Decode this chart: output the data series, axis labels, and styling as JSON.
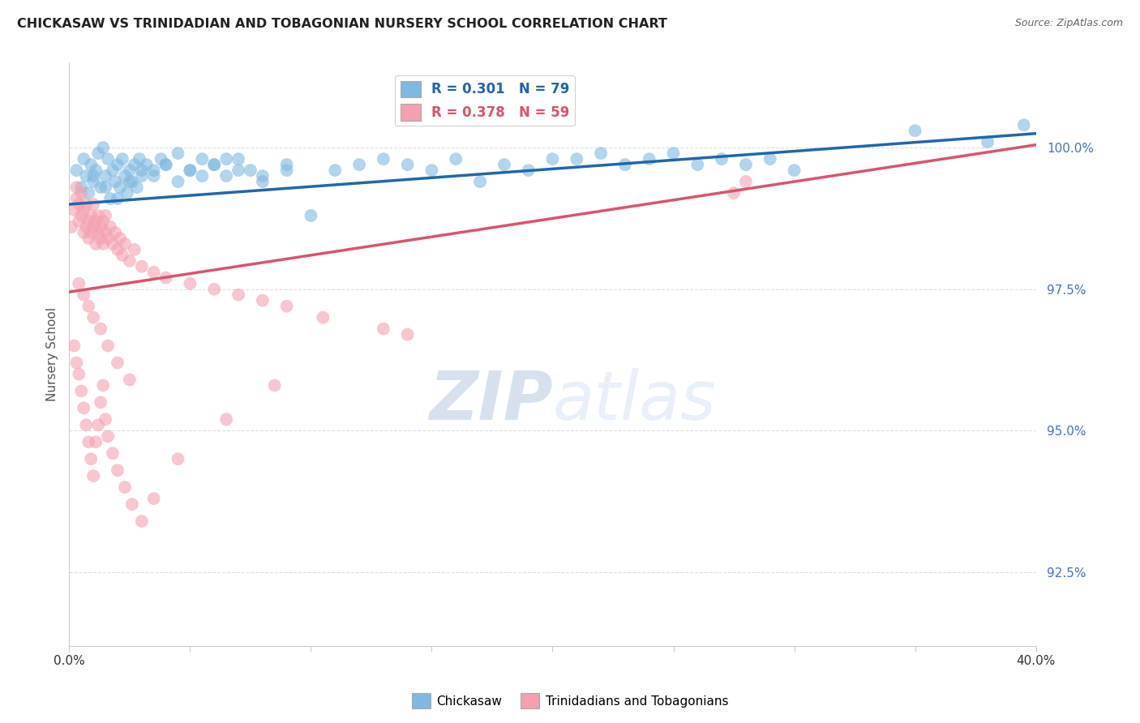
{
  "title": "CHICKASAW VS TRINIDADIAN AND TOBAGONIAN NURSERY SCHOOL CORRELATION CHART",
  "source": "Source: ZipAtlas.com",
  "ylabel": "Nursery School",
  "xlim": [
    0.0,
    40.0
  ],
  "ylim": [
    91.2,
    101.5
  ],
  "yticks": [
    92.5,
    95.0,
    97.5,
    100.0
  ],
  "ytick_labels": [
    "92.5%",
    "95.0%",
    "97.5%",
    "100.0%"
  ],
  "xticks": [
    0.0,
    5.0,
    10.0,
    15.0,
    20.0,
    25.0,
    30.0,
    35.0,
    40.0
  ],
  "blue_R": 0.301,
  "blue_N": 79,
  "pink_R": 0.378,
  "pink_N": 59,
  "blue_color": "#7fb8e0",
  "pink_color": "#f4a0b0",
  "blue_line_color": "#2166ac",
  "pink_line_color": "#d9546e",
  "legend_label_blue": "Chickasaw",
  "legend_label_pink": "Trinidadians and Tobagonians",
  "watermark_zip": "ZIP",
  "watermark_atlas": "atlas",
  "blue_scatter_x": [
    0.3,
    0.5,
    0.6,
    0.7,
    0.8,
    0.9,
    1.0,
    1.1,
    1.2,
    1.3,
    1.4,
    1.5,
    1.6,
    1.7,
    1.8,
    1.9,
    2.0,
    2.1,
    2.2,
    2.3,
    2.4,
    2.5,
    2.6,
    2.7,
    2.8,
    2.9,
    3.0,
    3.2,
    3.5,
    3.8,
    4.0,
    4.5,
    5.0,
    5.5,
    6.0,
    6.5,
    7.0,
    7.5,
    8.0,
    9.0,
    10.0,
    11.0,
    12.0,
    13.0,
    14.0,
    15.0,
    16.0,
    18.0,
    19.0,
    20.0,
    21.0,
    22.0,
    23.0,
    24.0,
    25.0,
    26.0,
    27.0,
    28.0,
    29.0,
    30.0,
    1.0,
    1.5,
    2.0,
    2.5,
    3.0,
    3.5,
    4.0,
    4.5,
    5.0,
    5.5,
    6.0,
    6.5,
    7.0,
    8.0,
    9.0,
    35.0,
    38.0,
    39.5,
    17.0
  ],
  "blue_scatter_y": [
    99.6,
    99.3,
    99.8,
    99.5,
    99.2,
    99.7,
    99.4,
    99.6,
    99.9,
    99.3,
    100.0,
    99.5,
    99.8,
    99.1,
    99.6,
    99.4,
    99.7,
    99.3,
    99.8,
    99.5,
    99.2,
    99.6,
    99.4,
    99.7,
    99.3,
    99.8,
    99.5,
    99.7,
    99.6,
    99.8,
    99.7,
    99.9,
    99.6,
    99.8,
    99.7,
    99.5,
    99.8,
    99.6,
    99.5,
    99.7,
    98.8,
    99.6,
    99.7,
    99.8,
    99.7,
    99.6,
    99.8,
    99.7,
    99.6,
    99.8,
    99.8,
    99.9,
    99.7,
    99.8,
    99.9,
    99.7,
    99.8,
    99.7,
    99.8,
    99.6,
    99.5,
    99.3,
    99.1,
    99.4,
    99.6,
    99.5,
    99.7,
    99.4,
    99.6,
    99.5,
    99.7,
    99.8,
    99.6,
    99.4,
    99.6,
    100.3,
    100.1,
    100.4,
    99.4
  ],
  "pink_scatter_x": [
    0.1,
    0.2,
    0.3,
    0.3,
    0.4,
    0.4,
    0.5,
    0.5,
    0.6,
    0.6,
    0.7,
    0.7,
    0.8,
    0.8,
    0.9,
    0.9,
    1.0,
    1.0,
    1.1,
    1.1,
    1.2,
    1.2,
    1.3,
    1.3,
    1.4,
    1.4,
    1.5,
    1.5,
    1.6,
    1.7,
    1.8,
    1.9,
    2.0,
    2.1,
    2.2,
    2.3,
    2.5,
    2.7,
    3.0,
    3.5,
    4.0,
    5.0,
    6.0,
    7.0,
    8.0,
    9.0,
    10.5,
    13.0,
    14.0,
    27.5,
    28.0,
    0.4,
    0.6,
    0.8,
    1.0,
    1.3,
    1.6,
    2.0,
    2.5
  ],
  "pink_scatter_y": [
    98.6,
    98.9,
    99.1,
    99.3,
    98.7,
    99.0,
    98.8,
    99.2,
    98.5,
    98.9,
    98.6,
    99.0,
    98.4,
    98.7,
    98.5,
    98.8,
    98.6,
    99.0,
    98.3,
    98.7,
    98.5,
    98.8,
    98.4,
    98.6,
    98.3,
    98.7,
    98.5,
    98.8,
    98.4,
    98.6,
    98.3,
    98.5,
    98.2,
    98.4,
    98.1,
    98.3,
    98.0,
    98.2,
    97.9,
    97.8,
    97.7,
    97.6,
    97.5,
    97.4,
    97.3,
    97.2,
    97.0,
    96.8,
    96.7,
    99.2,
    99.4,
    97.6,
    97.4,
    97.2,
    97.0,
    96.8,
    96.5,
    96.2,
    95.9
  ],
  "pink_extra_x": [
    0.2,
    0.3,
    0.4,
    0.5,
    0.6,
    0.7,
    0.8,
    0.9,
    1.0,
    1.1,
    1.2,
    1.3,
    1.4,
    1.5,
    1.6,
    1.8,
    2.0,
    2.3,
    2.6,
    3.0,
    3.5,
    4.5,
    6.5,
    8.5
  ],
  "pink_extra_y": [
    96.5,
    96.2,
    96.0,
    95.7,
    95.4,
    95.1,
    94.8,
    94.5,
    94.2,
    94.8,
    95.1,
    95.5,
    95.8,
    95.2,
    94.9,
    94.6,
    94.3,
    94.0,
    93.7,
    93.4,
    93.8,
    94.5,
    95.2,
    95.8
  ]
}
